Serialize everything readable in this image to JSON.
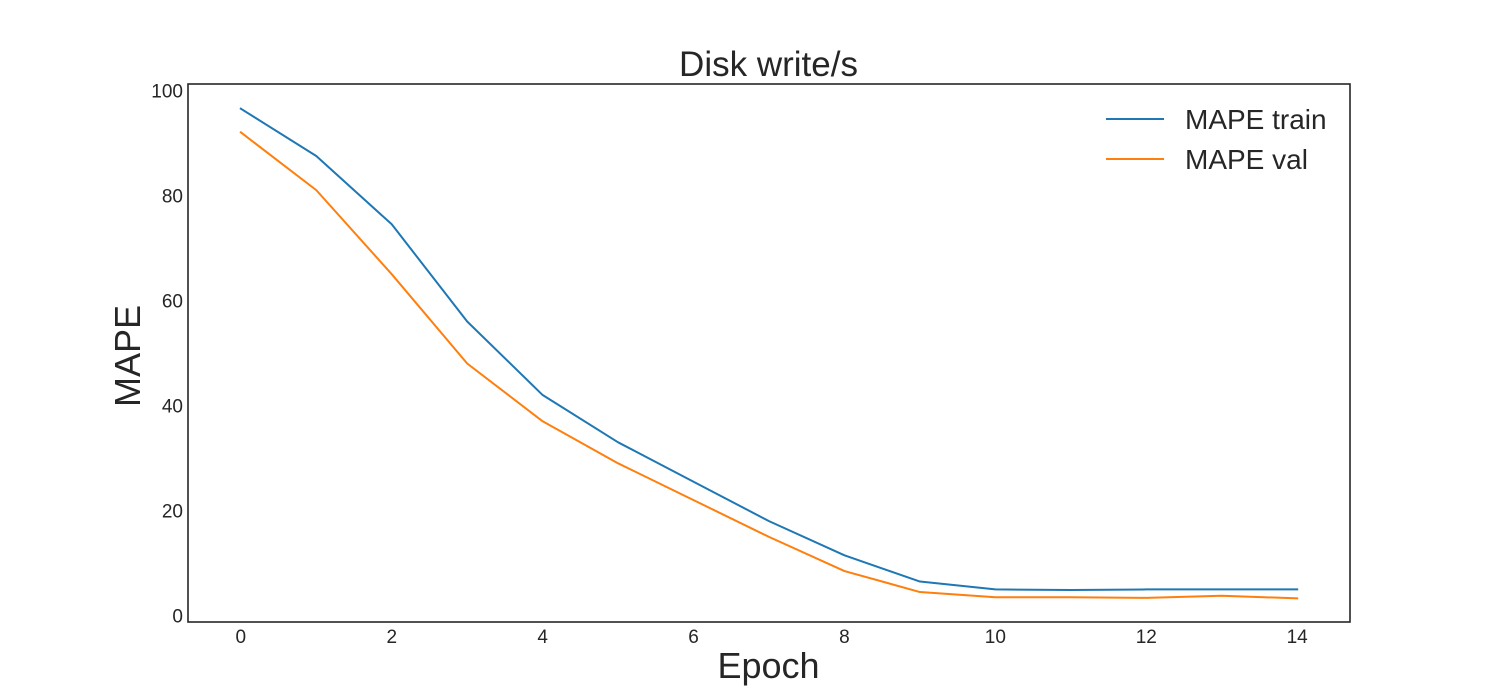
{
  "chart_data": {
    "type": "line",
    "title": "Disk write/s",
    "xlabel": "Epoch",
    "ylabel": "MAPE",
    "x": [
      0,
      1,
      2,
      3,
      4,
      5,
      6,
      7,
      8,
      9,
      10,
      11,
      12,
      13,
      14
    ],
    "xticks": [
      0,
      2,
      4,
      6,
      8,
      10,
      12,
      14
    ],
    "yticks": [
      0,
      20,
      40,
      60,
      80,
      100
    ],
    "xlim": [
      -0.7,
      14.7
    ],
    "ylim": [
      -1.2,
      101.2
    ],
    "grid": false,
    "legend_position": "top-right",
    "series": [
      {
        "name": "MAPE train",
        "color": "#1f77b4",
        "values": [
          96.5,
          87.5,
          74.5,
          56.0,
          42.0,
          33.0,
          25.5,
          18.0,
          11.5,
          6.5,
          5.0,
          4.9,
          5.0,
          5.0,
          5.0
        ]
      },
      {
        "name": "MAPE val",
        "color": "#ff7f0e",
        "values": [
          92.0,
          81.0,
          65.0,
          48.0,
          37.0,
          29.0,
          22.0,
          15.0,
          8.5,
          4.5,
          3.5,
          3.5,
          3.4,
          3.8,
          3.3
        ]
      }
    ]
  }
}
